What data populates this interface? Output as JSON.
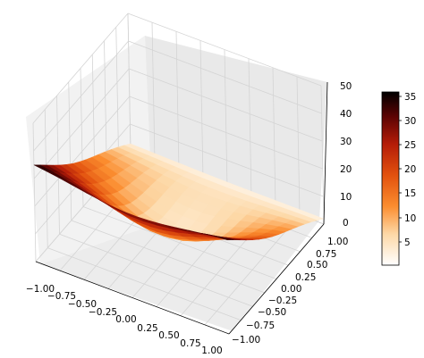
{
  "chart_data": {
    "type": "surface3d",
    "title": "",
    "xlabel": "",
    "ylabel": "",
    "zlabel": "",
    "grid": true,
    "colormap": "gist_heat_r",
    "x_ticks": [
      "−1.00",
      "−0.75",
      "−0.50",
      "−0.25",
      "0.00",
      "0.25",
      "0.50",
      "0.75",
      "1.00"
    ],
    "y_ticks": [
      "−1.00",
      "−0.75",
      "−0.50",
      "−0.25",
      "0.00",
      "0.25",
      "0.50",
      "0.75",
      "1.00"
    ],
    "z_ticks": [
      "0",
      "10",
      "20",
      "30",
      "40",
      "50"
    ],
    "xlim": [
      -1,
      1
    ],
    "ylim": [
      -1,
      1
    ],
    "zlim": [
      0,
      50
    ],
    "surface": {
      "x_range": [
        -1,
        1
      ],
      "y_range": [
        -1,
        1
      ],
      "z_range": [
        0,
        36
      ],
      "corners": {
        "x_min_y_min": 36,
        "x_max_y_max": 2,
        "x_max_y_min": 35,
        "x_min_y_max": 3
      },
      "note_low_region_near_center": 1
    },
    "colorbar": {
      "ticks": [
        "5",
        "10",
        "15",
        "20",
        "25",
        "30",
        "35"
      ],
      "min": 0.3,
      "max": 36
    }
  }
}
